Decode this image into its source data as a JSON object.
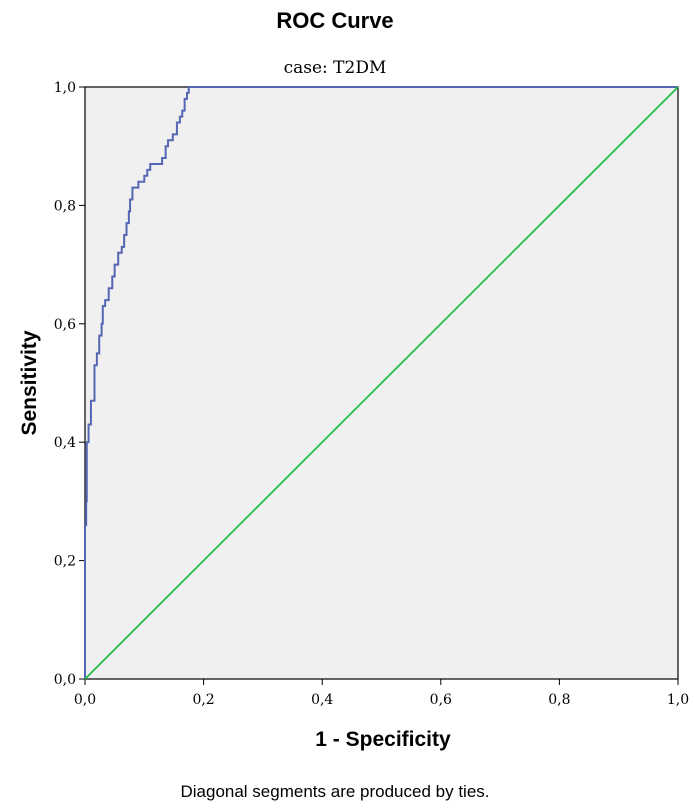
{
  "chart_data": {
    "type": "line",
    "title": "ROC Curve",
    "subtitle": "case: T2DM",
    "xlabel": "1 - Specificity",
    "ylabel": "Sensitivity",
    "footnote": "Diagonal segments are produced by ties.",
    "xlim": [
      0,
      1
    ],
    "ylim": [
      0,
      1
    ],
    "x_ticks": [
      0,
      0.2,
      0.4,
      0.6,
      0.8,
      1.0
    ],
    "y_ticks": [
      0,
      0.2,
      0.4,
      0.6,
      0.8,
      1.0
    ],
    "x_tick_labels": [
      "0,0",
      "0,2",
      "0,4",
      "0,6",
      "0,8",
      "1,0"
    ],
    "y_tick_labels": [
      "0,0",
      "0,2",
      "0,4",
      "0,6",
      "0,8",
      "1,0"
    ],
    "grid": false,
    "legend": "none",
    "series": [
      {
        "color": "#5567b4",
        "x": [
          0,
          0,
          0.002,
          0.003,
          0.006,
          0.01,
          0.01,
          0.016,
          0.016,
          0.02,
          0.024,
          0.028,
          0.03,
          0.034,
          0.04,
          0.046,
          0.05,
          0.056,
          0.062,
          0.066,
          0.07,
          0.074,
          0.076,
          0.08,
          0.084,
          0.09,
          0.096,
          0.1,
          0.105,
          0.11,
          0.12,
          0.13,
          0.136,
          0.14,
          0.148,
          0.155,
          0.16,
          0.164,
          0.168,
          0.172,
          0.175,
          0.3,
          0.46,
          1.0
        ],
        "y": [
          0,
          0.26,
          0.3,
          0.4,
          0.43,
          0.44,
          0.47,
          0.48,
          0.53,
          0.55,
          0.58,
          0.6,
          0.63,
          0.64,
          0.66,
          0.68,
          0.7,
          0.72,
          0.73,
          0.75,
          0.77,
          0.79,
          0.81,
          0.83,
          0.83,
          0.84,
          0.84,
          0.85,
          0.86,
          0.87,
          0.87,
          0.88,
          0.9,
          0.91,
          0.92,
          0.94,
          0.95,
          0.96,
          0.98,
          0.99,
          1.0,
          1.0,
          1.0,
          1.0
        ]
      },
      {
        "color": "#22c04a",
        "x": [
          0,
          1
        ],
        "y": [
          0,
          1
        ]
      }
    ]
  }
}
